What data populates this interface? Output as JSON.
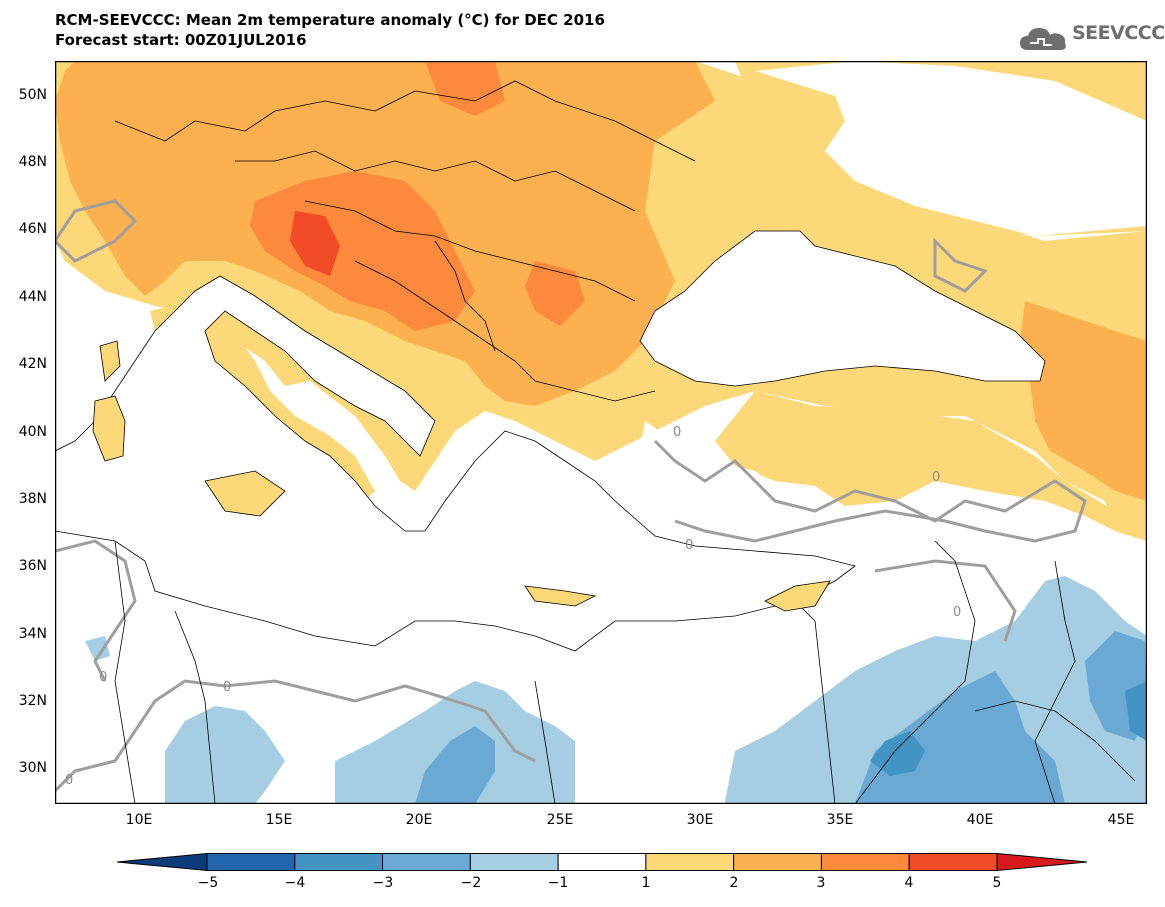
{
  "title": {
    "line1": "RCM-SEEVCCC: Mean 2m temperature anomaly (°C) for DEC 2016",
    "line2": "Forecast start: 00Z01JUL2016"
  },
  "logo": {
    "text": "SEEVCCC",
    "icon": "cloud-icon"
  },
  "map": {
    "lon_range": [
      7,
      46
    ],
    "lat_range": [
      29,
      51
    ],
    "lat_labels": [
      "50N",
      "48N",
      "46N",
      "44N",
      "42N",
      "40N",
      "38N",
      "36N",
      "34N",
      "32N",
      "30N"
    ],
    "lon_labels": [
      "10E",
      "15E",
      "20E",
      "25E",
      "30E",
      "35E",
      "40E",
      "45E"
    ],
    "contour_label": "0"
  },
  "colorbar": {
    "levels": [
      "−5",
      "−4",
      "−3",
      "−2",
      "−1",
      "1",
      "2",
      "3",
      "4",
      "5"
    ],
    "colors": [
      "#0d3c7a",
      "#2166ac",
      "#4393c3",
      "#6aa9d4",
      "#a6cee3",
      "#ffffff",
      "#fdd878",
      "#fdb04f",
      "#fd8a3c",
      "#f24b28",
      "#d7191c"
    ]
  }
}
